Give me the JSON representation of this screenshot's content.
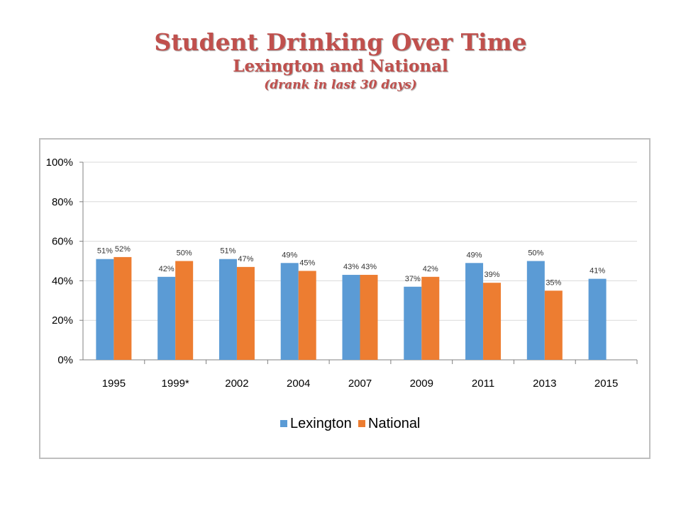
{
  "header": {
    "title": "Student Drinking Over Time",
    "subtitle": "Lexington and National",
    "note": "(drank in last 30 days)"
  },
  "colors": {
    "title": "#c0504d",
    "lexington": "#5b9bd5",
    "national": "#ed7d31",
    "grid": "#d9d9d9",
    "axis": "#808080"
  },
  "chart_data": {
    "type": "bar",
    "categories": [
      "1995",
      "1999*",
      "2002",
      "2004",
      "2007",
      "2009",
      "2011",
      "2013",
      "2015"
    ],
    "series": [
      {
        "name": "Lexington",
        "values": [
          51,
          42,
          51,
          49,
          43,
          37,
          49,
          50,
          41
        ],
        "labels": [
          "51%",
          "42%",
          "51%",
          "49%",
          "43%",
          "37%",
          "49%",
          "50%",
          "41%"
        ]
      },
      {
        "name": "National",
        "values": [
          52,
          50,
          47,
          45,
          43,
          42,
          39,
          35,
          null
        ],
        "labels": [
          "52%",
          "50%",
          "47%",
          "45%",
          "43%",
          "42%",
          "39%",
          "35%",
          ""
        ]
      }
    ],
    "ylim": [
      0,
      100
    ],
    "yticks": [
      "0%",
      "20%",
      "40%",
      "60%",
      "80%",
      "100%"
    ],
    "grid": true,
    "legend_position": "bottom"
  }
}
